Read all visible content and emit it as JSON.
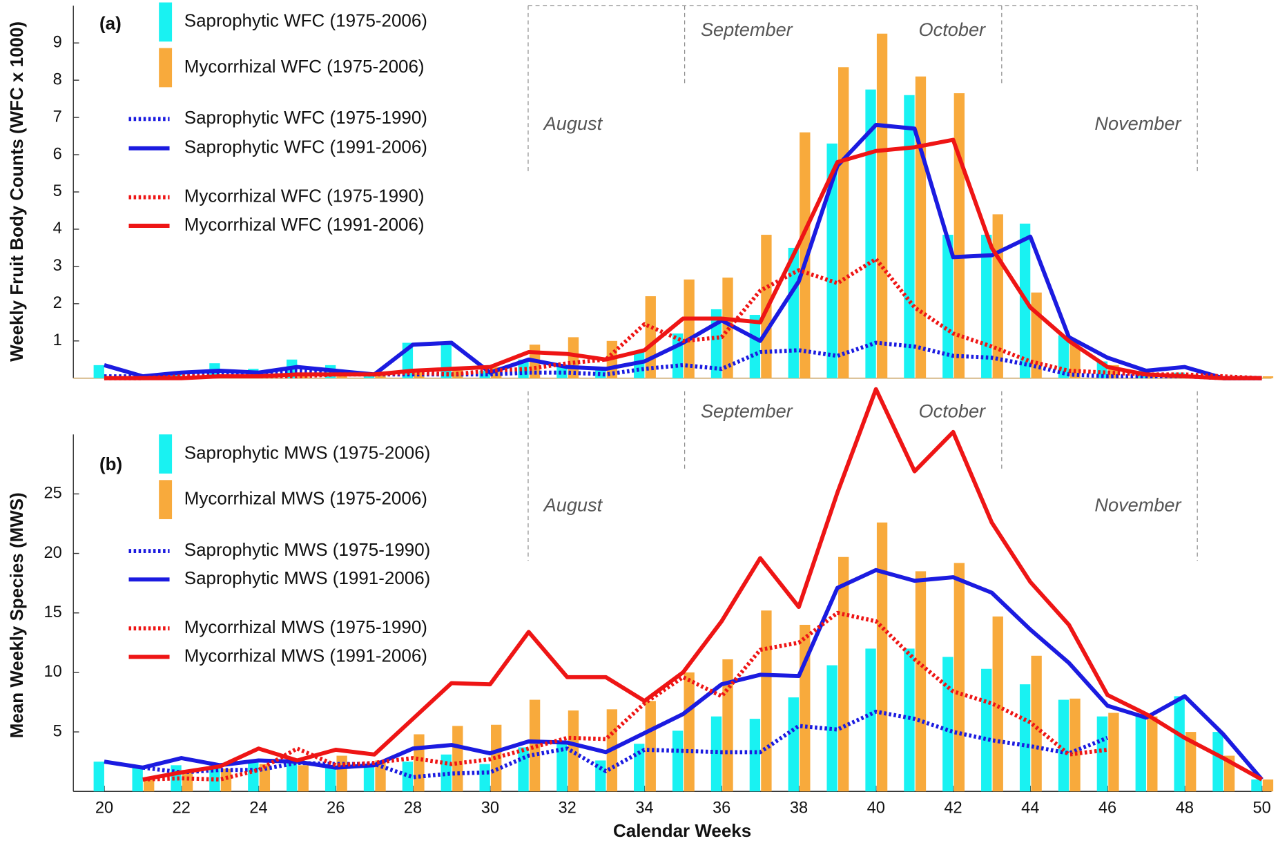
{
  "chart_data": [
    {
      "type": "combo",
      "label": "(a)",
      "ylabel": "Weekly Fruit Body Counts (WFC x 1000)",
      "x": [
        20,
        21,
        22,
        23,
        24,
        25,
        26,
        27,
        28,
        29,
        30,
        31,
        32,
        33,
        34,
        35,
        36,
        37,
        38,
        39,
        40,
        41,
        42,
        43,
        44,
        45,
        46,
        47,
        48,
        49,
        50
      ],
      "xlim": [
        19.2,
        50.25
      ],
      "ylim": [
        0,
        10
      ],
      "yticks": [
        1,
        2,
        3,
        4,
        5,
        6,
        7,
        8,
        9
      ],
      "grid": false,
      "legend": "upper left",
      "annotations": [
        "August",
        "September",
        "October",
        "November"
      ],
      "series": [
        {
          "name": "Saprophytic WFC (1975-2006)",
          "color": "#19f2f2",
          "kind": "bar",
          "values": [
            0.35,
            0.05,
            0.1,
            0.4,
            0.25,
            0.5,
            0.35,
            0.1,
            0.95,
            0.95,
            0.2,
            0.5,
            0.3,
            0.25,
            0.7,
            1.2,
            1.85,
            1.7,
            3.5,
            6.3,
            7.75,
            7.6,
            3.85,
            3.85,
            4.15,
            1.15,
            0.45,
            0.2,
            0.15,
            0.05,
            0.05
          ]
        },
        {
          "name": "Mycorrhizal WFC (1975-2006)",
          "color": "#f8aa3c",
          "kind": "bar",
          "values": [
            0,
            0,
            0.05,
            0.05,
            0.05,
            0.05,
            0.1,
            0.1,
            0.2,
            0.3,
            0.3,
            0.9,
            1.1,
            1.0,
            2.2,
            2.65,
            2.7,
            3.85,
            6.6,
            8.35,
            9.25,
            8.1,
            7.65,
            4.4,
            2.3,
            1.0,
            0.35,
            0.15,
            0.1,
            0.05,
            0.05
          ]
        },
        {
          "name": "Saprophytic WFC (1975-1990)",
          "color": "#1b1be0",
          "kind": "line",
          "dashed": true,
          "values": [
            0.05,
            0.05,
            0.1,
            0.15,
            0.15,
            0.2,
            0.15,
            0.1,
            0.1,
            0.1,
            0.1,
            0.15,
            0.15,
            0.1,
            0.25,
            0.35,
            0.25,
            0.7,
            0.75,
            0.6,
            0.95,
            0.85,
            0.6,
            0.55,
            0.35,
            0.1,
            0.05,
            0.05,
            0.05,
            0,
            0
          ]
        },
        {
          "name": "Saprophytic WFC (1991-2006)",
          "color": "#1b1be0",
          "kind": "line",
          "dashed": false,
          "values": [
            0.35,
            0.05,
            0.15,
            0.2,
            0.15,
            0.3,
            0.2,
            0.1,
            0.9,
            0.95,
            0.15,
            0.5,
            0.3,
            0.25,
            0.45,
            0.95,
            1.55,
            1.0,
            2.6,
            5.7,
            6.8,
            6.7,
            3.25,
            3.3,
            3.8,
            1.1,
            0.55,
            0.2,
            0.3,
            0,
            0
          ]
        },
        {
          "name": "Mycorrhizal WFC (1975-1990)",
          "color": "#ee1515",
          "kind": "line",
          "dashed": true,
          "values": [
            0,
            0,
            0.05,
            0.05,
            0.05,
            0.05,
            0.1,
            0.1,
            0.15,
            0.1,
            0.2,
            0.25,
            0.4,
            0.5,
            1.45,
            1.0,
            1.1,
            2.35,
            2.9,
            2.55,
            3.2,
            1.9,
            1.2,
            0.85,
            0.45,
            0.2,
            0.15,
            0.1,
            0.1,
            0.05,
            0
          ]
        },
        {
          "name": "Mycorrhizal WFC (1991-2006)",
          "color": "#ee1515",
          "kind": "line",
          "dashed": false,
          "values": [
            0,
            0,
            0,
            0.05,
            0.05,
            0.1,
            0.1,
            0.1,
            0.2,
            0.25,
            0.3,
            0.7,
            0.65,
            0.5,
            0.75,
            1.6,
            1.6,
            1.5,
            3.6,
            5.8,
            6.1,
            6.2,
            6.4,
            3.5,
            1.9,
            1.0,
            0.3,
            0.1,
            0.05,
            0,
            0
          ]
        }
      ]
    },
    {
      "type": "combo",
      "label": "(b)",
      "ylabel": "Mean Weekly Species (MWS)",
      "xlabel": "Calendar Weeks",
      "x": [
        20,
        21,
        22,
        23,
        24,
        25,
        26,
        27,
        28,
        29,
        30,
        31,
        32,
        33,
        34,
        35,
        36,
        37,
        38,
        39,
        40,
        41,
        42,
        43,
        44,
        45,
        46,
        47,
        48,
        49,
        50
      ],
      "xlim": [
        19.2,
        50.25
      ],
      "ylim": [
        0,
        30
      ],
      "yticks": [
        5,
        10,
        15,
        20,
        25
      ],
      "xticks": [
        20,
        22,
        24,
        26,
        28,
        30,
        32,
        34,
        36,
        38,
        40,
        42,
        44,
        46,
        48,
        50
      ],
      "grid": false,
      "legend": "upper left",
      "annotations": [
        "August",
        "September",
        "October",
        "November"
      ],
      "series": [
        {
          "name": "Saprophytic MWS (1975-2006)",
          "color": "#19f2f2",
          "kind": "bar",
          "values": [
            2.5,
            2.0,
            2.2,
            2.3,
            2.5,
            2.5,
            2.1,
            2.1,
            2.5,
            3.1,
            2.3,
            3.7,
            4.0,
            2.6,
            4.0,
            5.1,
            6.3,
            6.1,
            7.9,
            10.6,
            12.0,
            12.0,
            11.3,
            10.3,
            9.0,
            7.7,
            6.3,
            6.4,
            8.0,
            5.0,
            1.0
          ]
        },
        {
          "name": "Mycorrhizal MWS (1975-2006)",
          "color": "#f8aa3c",
          "kind": "bar",
          "values": [
            0,
            1.0,
            1.8,
            1.9,
            2.3,
            2.2,
            3.0,
            2.6,
            4.8,
            5.5,
            5.6,
            7.7,
            6.8,
            6.9,
            7.6,
            10.0,
            11.1,
            15.2,
            14.0,
            19.7,
            22.6,
            18.5,
            19.2,
            14.7,
            11.4,
            7.8,
            6.6,
            6.3,
            5.0,
            3.0,
            1.0
          ]
        },
        {
          "name": "Saprophytic MWS (1975-1990)",
          "color": "#1b1be0",
          "kind": "line",
          "dashed": true,
          "values": [
            null,
            2.0,
            1.6,
            1.8,
            1.8,
            2.4,
            2.3,
            2.3,
            1.2,
            1.5,
            1.6,
            3.0,
            3.6,
            1.7,
            3.5,
            3.4,
            3.3,
            3.3,
            5.5,
            5.2,
            6.7,
            6.1,
            5.0,
            4.3,
            3.8,
            3.2,
            4.5,
            null,
            null,
            null,
            null
          ]
        },
        {
          "name": "Saprophytic MWS (1991-2006)",
          "color": "#1b1be0",
          "kind": "line",
          "dashed": false,
          "values": [
            2.5,
            2.0,
            2.8,
            2.2,
            2.6,
            2.5,
            2.0,
            2.2,
            3.6,
            3.9,
            3.2,
            4.2,
            4.1,
            3.3,
            4.9,
            6.5,
            9.0,
            9.8,
            9.7,
            17.1,
            18.6,
            17.7,
            18.0,
            16.7,
            13.6,
            10.8,
            7.2,
            6.2,
            8.0,
            4.8,
            1.0
          ]
        },
        {
          "name": "Mycorrhizal MWS (1975-1990)",
          "color": "#ee1515",
          "kind": "line",
          "dashed": true,
          "values": [
            null,
            1.0,
            1.1,
            1.0,
            1.8,
            3.6,
            2.2,
            2.4,
            2.8,
            2.3,
            2.7,
            3.6,
            4.5,
            4.4,
            7.4,
            9.6,
            8.0,
            11.9,
            12.5,
            15.0,
            14.3,
            11.1,
            8.4,
            7.4,
            5.8,
            3.1,
            3.5,
            null,
            null,
            null,
            null
          ]
        },
        {
          "name": "Mycorrhizal MWS (1991-2006)",
          "color": "#ee1515",
          "kind": "line",
          "dashed": false,
          "values": [
            null,
            1.0,
            1.6,
            2.1,
            3.6,
            2.6,
            3.5,
            3.1,
            6.1,
            9.1,
            9.0,
            13.4,
            9.6,
            9.6,
            7.6,
            10.0,
            14.3,
            19.6,
            15.5,
            25.1,
            33.8,
            26.9,
            30.2,
            22.6,
            17.6,
            14.0,
            8.1,
            6.5,
            4.5,
            2.8,
            1.0
          ]
        }
      ]
    }
  ]
}
